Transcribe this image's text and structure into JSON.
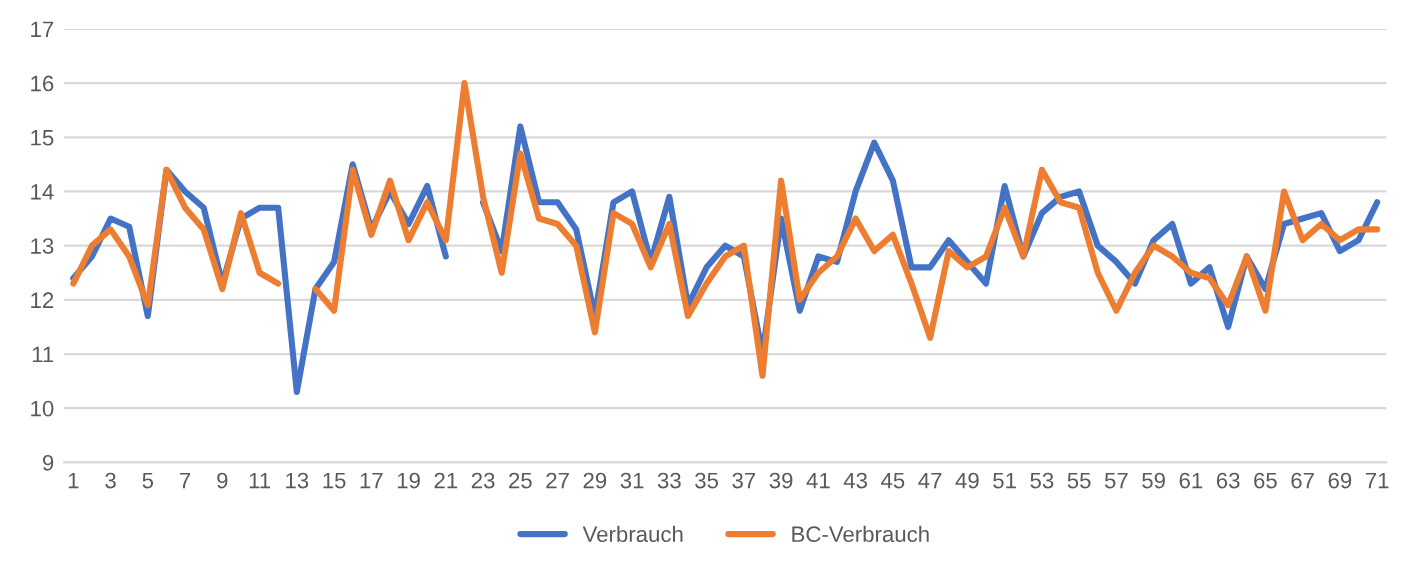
{
  "chart_data": {
    "type": "line",
    "categories": [
      "1",
      null,
      "3",
      null,
      "5",
      null,
      "7",
      null,
      "9",
      null,
      "11",
      null,
      "13",
      null,
      "15",
      null,
      "17",
      null,
      "19",
      null,
      "21",
      null,
      "23",
      null,
      "25",
      null,
      "27",
      null,
      "29",
      null,
      "31",
      null,
      "33",
      null,
      "35",
      null,
      "37",
      null,
      "39",
      null,
      "41",
      null,
      "43",
      null,
      "45",
      null,
      "47",
      null,
      "49",
      null,
      "51",
      null,
      "53",
      null,
      "55",
      null,
      "57",
      null,
      "59",
      null,
      "61",
      null,
      "63",
      null,
      "65",
      null,
      "67",
      null,
      "69",
      null,
      "71"
    ],
    "series": [
      {
        "name": "Verbrauch",
        "color": "#4472c4",
        "values": [
          12.4,
          12.8,
          13.5,
          13.35,
          11.7,
          14.4,
          14.0,
          13.7,
          12.3,
          13.5,
          13.7,
          13.7,
          10.3,
          12.2,
          12.7,
          14.5,
          13.3,
          14.0,
          13.4,
          14.1,
          12.8,
          null,
          13.8,
          12.9,
          15.2,
          13.8,
          13.8,
          13.3,
          11.7,
          13.8,
          14.0,
          12.7,
          13.9,
          11.9,
          12.6,
          13.0,
          12.8,
          11.0,
          13.5,
          11.8,
          12.8,
          12.7,
          14.0,
          14.9,
          14.2,
          12.6,
          12.6,
          13.1,
          12.7,
          12.3,
          14.1,
          12.8,
          13.6,
          13.9,
          14.0,
          13.0,
          12.7,
          12.3,
          13.1,
          13.4,
          12.3,
          12.6,
          11.5,
          12.8,
          12.2,
          13.4,
          13.5,
          13.6,
          12.9,
          13.1,
          13.8
        ]
      },
      {
        "name": "BC-Verbrauch",
        "color": "#ed7d31",
        "values": [
          12.3,
          13.0,
          13.3,
          12.8,
          11.9,
          14.4,
          13.7,
          13.3,
          12.2,
          13.6,
          12.5,
          12.3,
          null,
          12.2,
          11.8,
          14.4,
          13.2,
          14.2,
          13.1,
          13.8,
          13.1,
          16.0,
          13.9,
          12.5,
          14.7,
          13.5,
          13.4,
          13.0,
          11.4,
          13.6,
          13.4,
          12.6,
          13.4,
          11.7,
          12.3,
          12.8,
          13.0,
          10.6,
          14.2,
          12.0,
          12.5,
          12.8,
          13.5,
          12.9,
          13.2,
          12.3,
          11.3,
          12.9,
          12.6,
          12.8,
          13.7,
          12.8,
          14.4,
          13.8,
          13.7,
          12.5,
          11.8,
          12.5,
          13.0,
          12.8,
          12.5,
          12.4,
          11.9,
          12.8,
          11.8,
          14.0,
          13.1,
          13.4,
          13.1,
          13.3,
          13.3
        ]
      }
    ],
    "ylim": [
      9,
      17
    ],
    "yticks": [
      9,
      10,
      11,
      12,
      13,
      14,
      15,
      16,
      17
    ],
    "grid": "y",
    "legend": "bottom",
    "marker": "none",
    "line_style": "solid"
  }
}
